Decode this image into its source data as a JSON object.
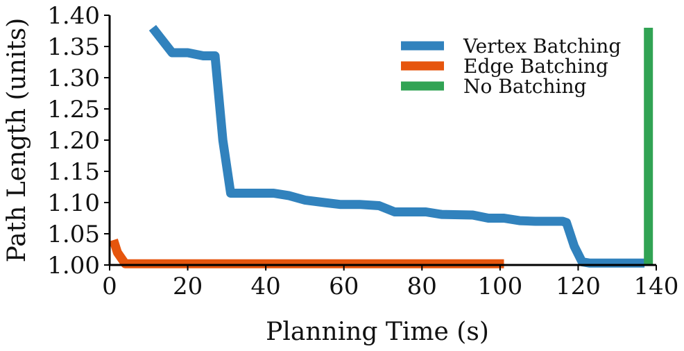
{
  "chart_data": {
    "type": "line",
    "title": "",
    "xlabel": "Planning Time (s)",
    "ylabel": "Path Length (units)",
    "xlim": [
      0,
      140
    ],
    "ylim": [
      1.0,
      1.4
    ],
    "xticks": [
      "0",
      "20",
      "40",
      "60",
      "80",
      "100",
      "120",
      "140"
    ],
    "yticks": [
      "1.00",
      "1.05",
      "1.10",
      "1.15",
      "1.20",
      "1.25",
      "1.30",
      "1.35",
      "1.40"
    ],
    "grid": false,
    "legend_position": "top-right",
    "series": [
      {
        "name": "Vertex Batching",
        "color": "#3182bd",
        "x": [
          11,
          16,
          20,
          24,
          27,
          29,
          31,
          35,
          42,
          46,
          50,
          55,
          59,
          64,
          69,
          73,
          81,
          85,
          93,
          97,
          101,
          105,
          109,
          116,
          117,
          119,
          121,
          123,
          137
        ],
        "y": [
          1.38,
          1.34,
          1.34,
          1.335,
          1.335,
          1.2,
          1.115,
          1.115,
          1.115,
          1.111,
          1.104,
          1.1,
          1.097,
          1.097,
          1.095,
          1.085,
          1.085,
          1.081,
          1.08,
          1.075,
          1.075,
          1.071,
          1.07,
          1.07,
          1.068,
          1.03,
          1.005,
          1.003,
          1.003
        ]
      },
      {
        "name": "Edge Batching",
        "color": "#e6550d",
        "x": [
          1,
          2,
          4,
          101
        ],
        "y": [
          1.04,
          1.02,
          1.002,
          1.002
        ]
      },
      {
        "name": "No Batching",
        "color": "#31a354",
        "x": [
          138,
          138
        ],
        "y": [
          1.0,
          1.38
        ]
      }
    ]
  }
}
